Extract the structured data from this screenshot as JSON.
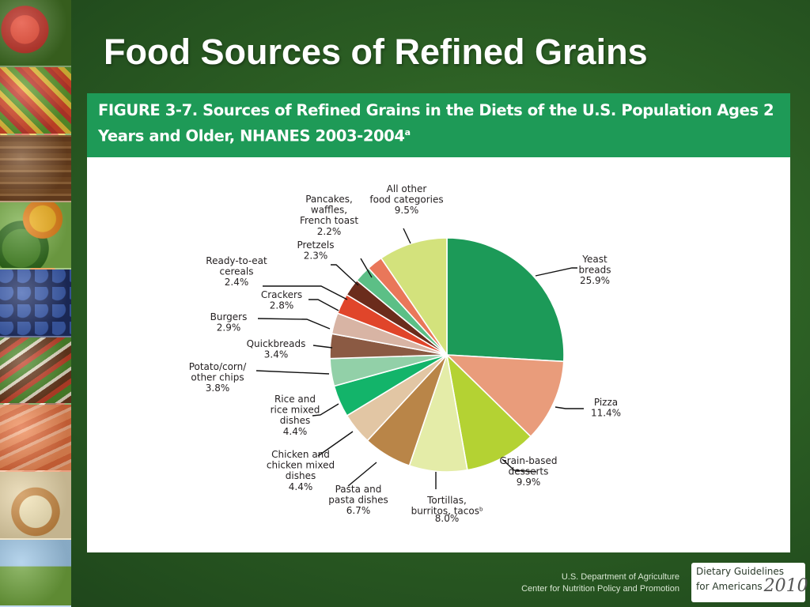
{
  "slide": {
    "title": "Food Sources of Refined Grains"
  },
  "figure": {
    "title": "FIGURE 3-7. Sources of Refined Grains in the Diets of the U.S. Population Ages 2 Years and Older, NHANES 2003-2004",
    "title_footnote": "a"
  },
  "chart_data": {
    "type": "pie",
    "title": "FIGURE 3-7. Sources of Refined Grains in the Diets of the U.S. Population Ages 2 Years and Older, NHANES 2003-2004",
    "start_angle_deg": 0,
    "direction": "clockwise",
    "slices": [
      {
        "label": "Yeast breads",
        "lines": [
          "Yeast",
          "breads",
          "25.9%"
        ],
        "value": 25.9,
        "color": "#1c9a58"
      },
      {
        "label": "Pizza",
        "lines": [
          "Pizza",
          "11.4%"
        ],
        "value": 11.4,
        "color": "#e99c7b"
      },
      {
        "label": "Grain-based desserts",
        "lines": [
          "Grain-based",
          "desserts",
          "9.9%"
        ],
        "value": 9.9,
        "color": "#b4d233"
      },
      {
        "label": "Tortillas, burritos, tacos",
        "lines": [
          "Tortillas,",
          "burritos, tacos",
          "8.0%"
        ],
        "footnote": "b",
        "value": 8.0,
        "color": "#e4eca8"
      },
      {
        "label": "Pasta and pasta dishes",
        "lines": [
          "Pasta and",
          "pasta dishes",
          "6.7%"
        ],
        "value": 6.7,
        "color": "#b98548"
      },
      {
        "label": "Chicken and chicken mixed dishes",
        "lines": [
          "Chicken and",
          "chicken mixed",
          "dishes",
          "4.4%"
        ],
        "value": 4.4,
        "color": "#e2c6a4"
      },
      {
        "label": "Rice and rice mixed dishes",
        "lines": [
          "Rice and",
          "rice mixed",
          "dishes",
          "4.4%"
        ],
        "value": 4.4,
        "color": "#13b46a"
      },
      {
        "label": "Potato/corn/other chips",
        "lines": [
          "Potato/corn/",
          "other chips",
          "3.8%"
        ],
        "value": 3.8,
        "color": "#92d0a8"
      },
      {
        "label": "Quickbreads",
        "lines": [
          "Quickbreads",
          "3.4%"
        ],
        "value": 3.4,
        "color": "#8b5a43"
      },
      {
        "label": "Burgers",
        "lines": [
          "Burgers",
          "2.9%"
        ],
        "value": 2.9,
        "color": "#d8b4a4"
      },
      {
        "label": "Crackers",
        "lines": [
          "Crackers",
          "2.8%"
        ],
        "value": 2.8,
        "color": "#e0452a"
      },
      {
        "label": "Ready-to-eat cereals",
        "lines": [
          "Ready-to-eat",
          "cereals",
          "2.4%"
        ],
        "value": 2.4,
        "color": "#6b2c1c"
      },
      {
        "label": "Pretzels",
        "lines": [
          "Pretzels",
          "2.3%"
        ],
        "value": 2.3,
        "color": "#5cbf86"
      },
      {
        "label": "Pancakes, waffles, French toast",
        "lines": [
          "Pancakes,",
          "waffles,",
          "French toast",
          "2.2%"
        ],
        "value": 2.2,
        "color": "#e9775a"
      },
      {
        "label": "All other food categories",
        "lines": [
          "All other",
          "food categories",
          "9.5%"
        ],
        "value": 9.5,
        "color": "#d3e27c"
      }
    ]
  },
  "footer": {
    "agency": "U.S. Department of Agriculture",
    "center": "Center for Nutrition Policy and Promotion"
  },
  "logo": {
    "line1": "Dietary Guidelines",
    "line2": "for Americans",
    "year": "2010"
  }
}
